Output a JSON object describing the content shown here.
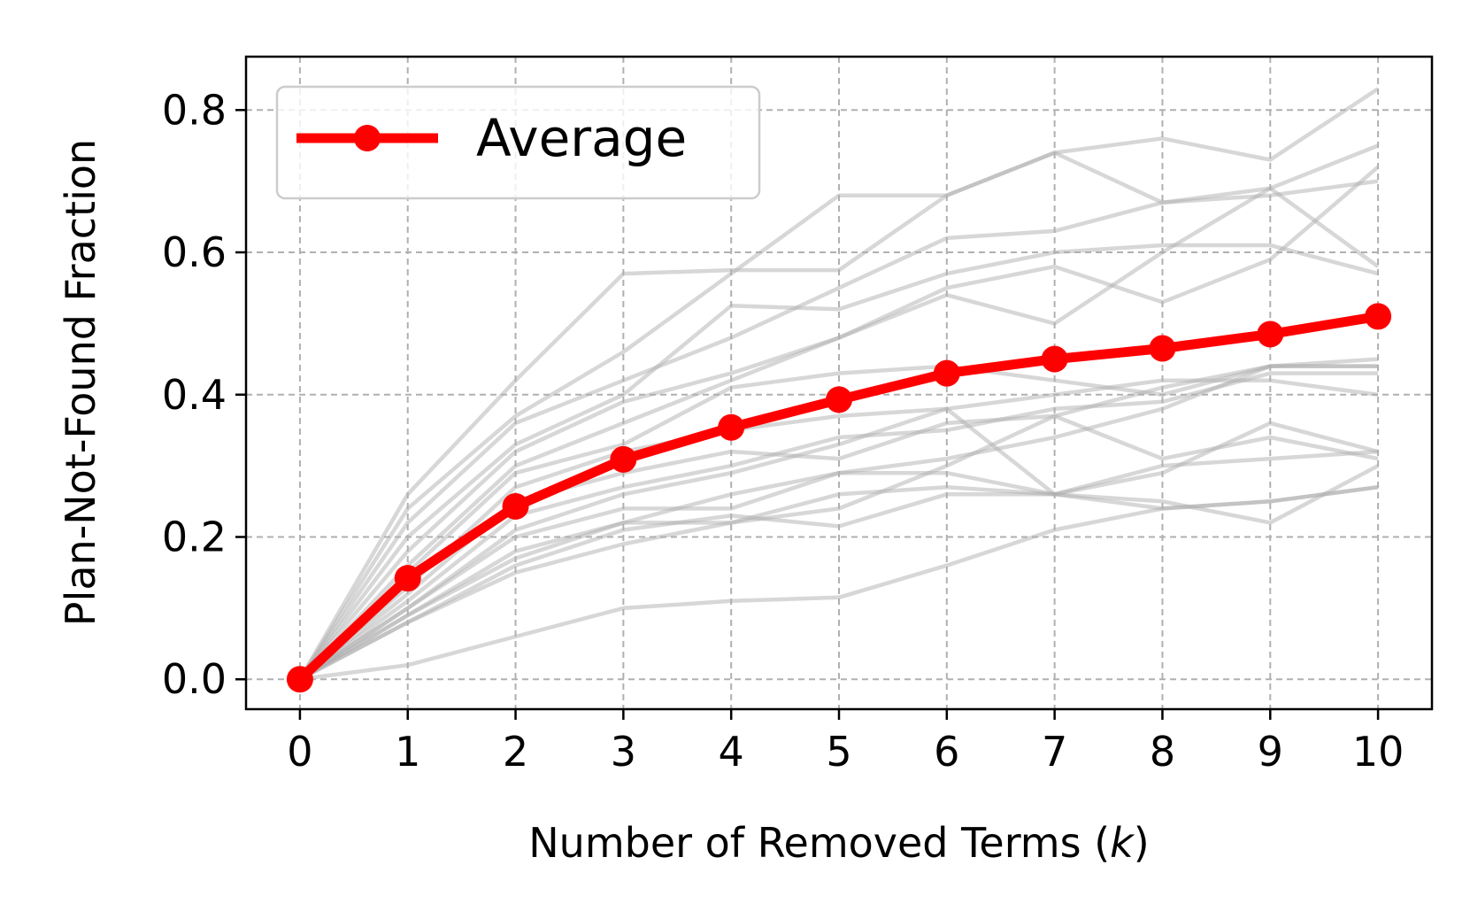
{
  "chart_data": {
    "type": "line",
    "xlabel_prefix": "Number of Removed Terms (",
    "xlabel_var": "k",
    "xlabel_suffix": ")",
    "ylabel": "Plan-Not-Found Fraction",
    "x": [
      0,
      1,
      2,
      3,
      4,
      5,
      6,
      7,
      8,
      9,
      10
    ],
    "xlim": [
      -0.5,
      10.5
    ],
    "ylim": [
      -0.042,
      0.875
    ],
    "xticks": [
      "0",
      "1",
      "2",
      "3",
      "4",
      "5",
      "6",
      "7",
      "8",
      "9",
      "10"
    ],
    "yticks": [
      {
        "value": 0.0,
        "label": "0.0"
      },
      {
        "value": 0.2,
        "label": "0.2"
      },
      {
        "value": 0.4,
        "label": "0.4"
      },
      {
        "value": 0.6,
        "label": "0.6"
      },
      {
        "value": 0.8,
        "label": "0.8"
      }
    ],
    "grid": true,
    "legend": {
      "position": "top-left",
      "entries": [
        "Average"
      ]
    },
    "average": {
      "name": "Average",
      "color": "#ff0000",
      "values": [
        0.0,
        0.142,
        0.243,
        0.309,
        0.354,
        0.393,
        0.43,
        0.45,
        0.465,
        0.485,
        0.51
      ]
    },
    "background_series_color": "#b0b0b0",
    "background_series": [
      [
        0,
        0.26,
        0.42,
        0.57,
        0.575,
        0.575,
        0.68,
        0.74,
        0.76,
        0.73,
        0.83
      ],
      [
        0,
        0.24,
        0.37,
        0.46,
        0.57,
        0.68,
        0.68,
        0.74,
        0.67,
        0.68,
        0.7
      ],
      [
        0,
        0.22,
        0.36,
        0.42,
        0.48,
        0.55,
        0.62,
        0.63,
        0.67,
        0.69,
        0.75
      ],
      [
        0,
        0.2,
        0.33,
        0.4,
        0.525,
        0.52,
        0.57,
        0.6,
        0.61,
        0.61,
        0.57
      ],
      [
        0,
        0.18,
        0.32,
        0.39,
        0.43,
        0.48,
        0.55,
        0.58,
        0.53,
        0.59,
        0.72
      ],
      [
        0,
        0.16,
        0.3,
        0.36,
        0.42,
        0.48,
        0.54,
        0.5,
        0.6,
        0.69,
        0.58
      ],
      [
        0,
        0.15,
        0.29,
        0.33,
        0.41,
        0.43,
        0.44,
        0.42,
        0.4,
        0.44,
        0.44
      ],
      [
        0,
        0.13,
        0.27,
        0.32,
        0.35,
        0.37,
        0.38,
        0.4,
        0.42,
        0.42,
        0.4
      ],
      [
        0,
        0.12,
        0.25,
        0.29,
        0.32,
        0.31,
        0.36,
        0.37,
        0.41,
        0.44,
        0.45
      ],
      [
        0,
        0.11,
        0.23,
        0.27,
        0.3,
        0.34,
        0.35,
        0.38,
        0.39,
        0.43,
        0.43
      ],
      [
        0,
        0.1,
        0.21,
        0.26,
        0.29,
        0.33,
        0.38,
        0.26,
        0.29,
        0.36,
        0.32
      ],
      [
        0,
        0.1,
        0.2,
        0.24,
        0.24,
        0.29,
        0.31,
        0.34,
        0.38,
        0.44,
        0.44
      ],
      [
        0,
        0.09,
        0.18,
        0.22,
        0.26,
        0.29,
        0.29,
        0.26,
        0.3,
        0.31,
        0.32
      ],
      [
        0,
        0.09,
        0.17,
        0.22,
        0.22,
        0.24,
        0.3,
        0.37,
        0.31,
        0.34,
        0.31
      ],
      [
        0,
        0.08,
        0.16,
        0.21,
        0.23,
        0.215,
        0.26,
        0.26,
        0.25,
        0.22,
        0.3
      ],
      [
        0,
        0.08,
        0.15,
        0.19,
        0.22,
        0.26,
        0.27,
        0.26,
        0.24,
        0.25,
        0.27
      ],
      [
        0,
        0.02,
        0.06,
        0.1,
        0.11,
        0.115,
        0.16,
        0.21,
        0.24,
        0.25,
        0.27
      ]
    ]
  }
}
